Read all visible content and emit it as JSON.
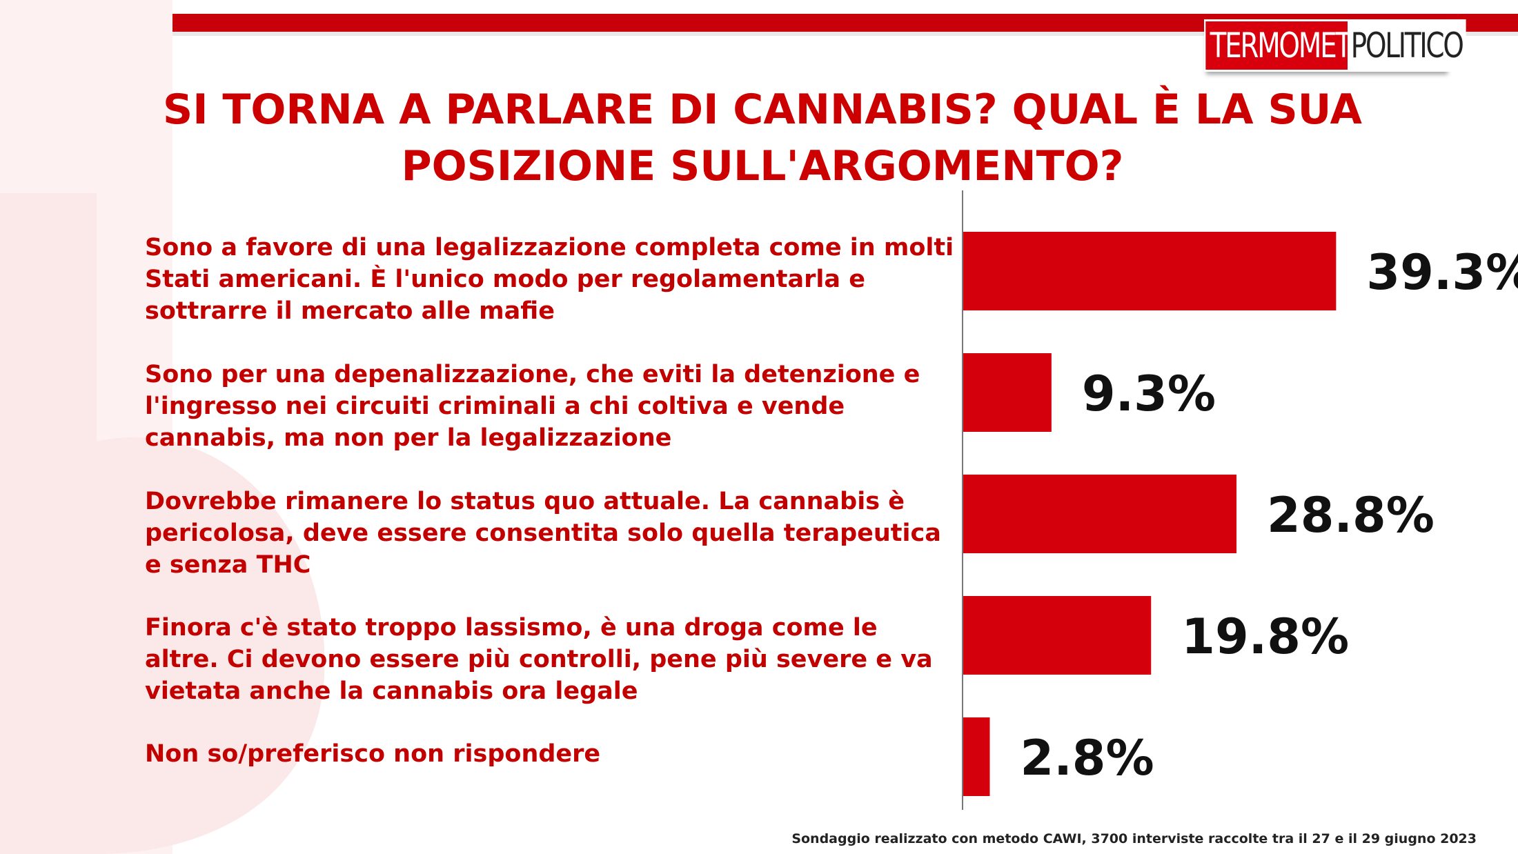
{
  "brand": {
    "left": "TERMOMETRO",
    "right": "POLITICO"
  },
  "footnote": "Sondaggio realizzato con metodo CAWI, 3700 interviste raccolte tra il 27 e il 29 giugno 2023",
  "colors": {
    "accent": "#cc0000",
    "bar": "#d4000c",
    "text": "#c20000"
  },
  "chart_data": {
    "type": "bar",
    "orientation": "horizontal",
    "title": "SI TORNA A PARLARE DI CANNABIS? QUAL È LA SUA POSIZIONE SULL'ARGOMENTO?",
    "categories": [
      "Sono a favore di una legalizzazione completa come in molti Stati americani. È l'unico modo per regolamentarla e sottrarre il mercato alle mafie",
      "Sono per una depenalizzazione, che eviti la detenzione e l'ingresso nei circuiti criminali a chi coltiva e vende cannabis, ma non per la legalizzazione",
      "Dovrebbe rimanere lo status quo attuale. La cannabis è pericolosa, deve essere consentita solo quella terapeutica e senza THC",
      "Finora c'è stato troppo lassismo, è una droga come le altre. Ci devono essere più controlli, pene più severe e va vietata anche la cannabis ora legale",
      "Non so/preferisco non rispondere"
    ],
    "values": [
      39.3,
      9.3,
      28.8,
      19.8,
      2.8
    ],
    "value_labels": [
      "39.3%",
      "9.3%",
      "28.8%",
      "19.8%",
      "2.8%"
    ],
    "xlim": [
      0,
      55
    ],
    "grid": false,
    "legend": "none"
  }
}
